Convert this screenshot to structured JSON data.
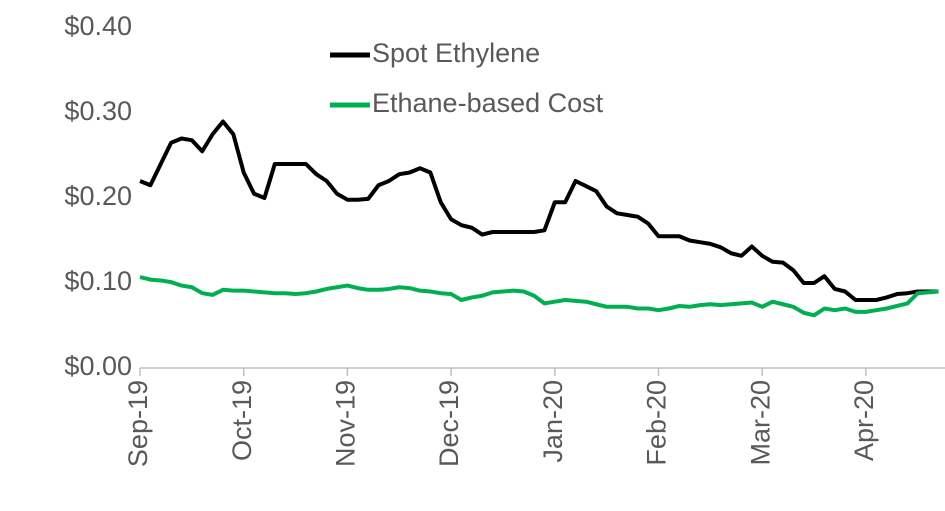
{
  "chart_data": {
    "type": "line",
    "categories": [
      "Sep-19",
      null,
      null,
      null,
      null,
      null,
      null,
      null,
      null,
      null,
      "Oct-19",
      null,
      null,
      null,
      null,
      null,
      null,
      null,
      null,
      null,
      "Nov-19",
      null,
      null,
      null,
      null,
      null,
      null,
      null,
      null,
      null,
      "Dec-19",
      null,
      null,
      null,
      null,
      null,
      null,
      null,
      null,
      null,
      "Jan-20",
      null,
      null,
      null,
      null,
      null,
      null,
      null,
      null,
      null,
      "Feb-20",
      null,
      null,
      null,
      null,
      null,
      null,
      null,
      null,
      null,
      "Mar-20",
      null,
      null,
      null,
      null,
      null,
      null,
      null,
      null,
      null,
      "Apr-20",
      null,
      null,
      null,
      null,
      null,
      null,
      null
    ],
    "series": [
      {
        "name": "Spot Ethylene",
        "color": "#000000",
        "values": [
          0.22,
          0.215,
          0.24,
          0.265,
          0.27,
          0.268,
          0.255,
          0.275,
          0.29,
          0.275,
          0.23,
          0.205,
          0.2,
          0.24,
          0.24,
          0.24,
          0.24,
          0.228,
          0.22,
          0.205,
          0.198,
          0.198,
          0.199,
          0.215,
          0.22,
          0.228,
          0.23,
          0.235,
          0.23,
          0.195,
          0.175,
          0.168,
          0.165,
          0.157,
          0.16,
          0.16,
          0.16,
          0.16,
          0.16,
          0.162,
          0.195,
          0.195,
          0.22,
          0.214,
          0.208,
          0.19,
          0.182,
          0.18,
          0.178,
          0.17,
          0.155,
          0.155,
          0.155,
          0.15,
          0.148,
          0.146,
          0.142,
          0.135,
          0.132,
          0.143,
          0.132,
          0.125,
          0.124,
          0.115,
          0.1,
          0.1,
          0.108,
          0.093,
          0.09,
          0.08,
          0.08,
          0.08,
          0.083,
          0.087,
          0.088,
          0.09,
          0.09,
          0.09
        ]
      },
      {
        "name": "Ethane-based Cost",
        "color": "#00b050",
        "values": [
          0.107,
          0.104,
          0.103,
          0.101,
          0.097,
          0.095,
          0.088,
          0.086,
          0.092,
          0.091,
          0.091,
          0.09,
          0.089,
          0.088,
          0.088,
          0.087,
          0.088,
          0.09,
          0.093,
          0.095,
          0.097,
          0.094,
          0.092,
          0.092,
          0.093,
          0.095,
          0.094,
          0.091,
          0.09,
          0.088,
          0.087,
          0.08,
          0.083,
          0.085,
          0.089,
          0.09,
          0.091,
          0.09,
          0.085,
          0.076,
          0.078,
          0.08,
          0.079,
          0.078,
          0.075,
          0.072,
          0.072,
          0.072,
          0.07,
          0.07,
          0.068,
          0.07,
          0.073,
          0.072,
          0.074,
          0.075,
          0.074,
          0.075,
          0.076,
          0.077,
          0.072,
          0.078,
          0.075,
          0.072,
          0.065,
          0.062,
          0.07,
          0.068,
          0.07,
          0.066,
          0.066,
          0.068,
          0.07,
          0.073,
          0.076,
          0.088,
          0.089,
          0.09
        ]
      }
    ],
    "ylim": [
      0,
      0.4
    ],
    "yticks": [
      {
        "value": 0,
        "label": "$0.00"
      },
      {
        "value": 0.1,
        "label": "$0.10"
      },
      {
        "value": 0.2,
        "label": "$0.20"
      },
      {
        "value": 0.3,
        "label": "$0.30"
      },
      {
        "value": 0.4,
        "label": "$0.40"
      }
    ]
  }
}
